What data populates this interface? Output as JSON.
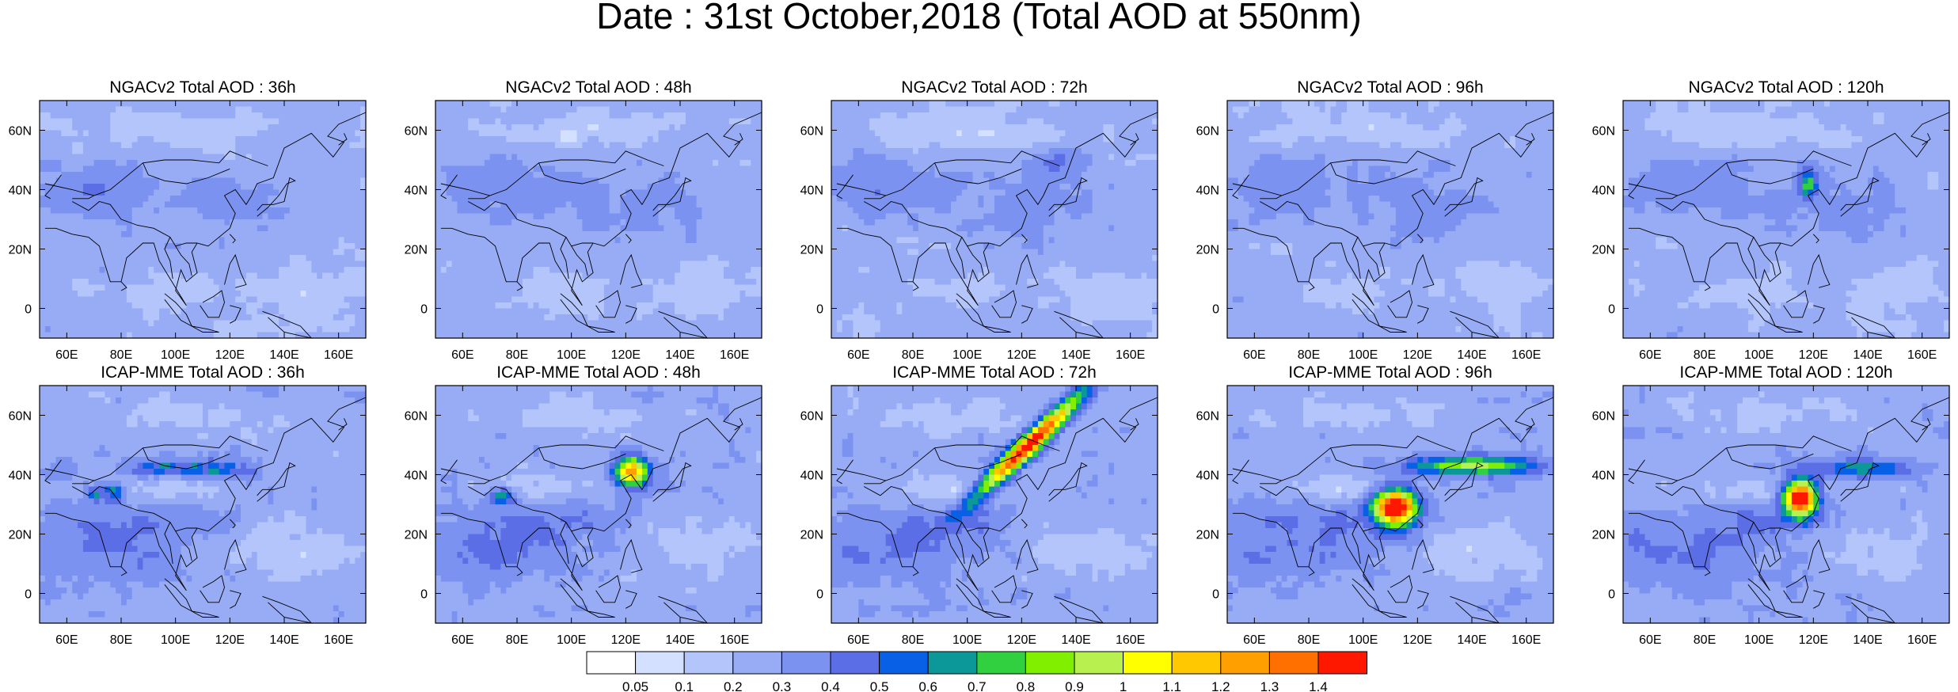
{
  "title": "Date : 31st October,2018 (Total AOD at 550nm)",
  "lon_ticks": [
    "60E",
    "80E",
    "100E",
    "120E",
    "140E",
    "160E"
  ],
  "lat_ticks": [
    "60N",
    "40N",
    "20N",
    "0"
  ],
  "panels": [
    {
      "title": "NGACv2 Total AOD : 36h",
      "model": "NGACv2",
      "lead": "36h",
      "row": 0,
      "col": 0
    },
    {
      "title": "NGACv2 Total AOD : 48h",
      "model": "NGACv2",
      "lead": "48h",
      "row": 0,
      "col": 1
    },
    {
      "title": "NGACv2 Total AOD : 72h",
      "model": "NGACv2",
      "lead": "72h",
      "row": 0,
      "col": 2
    },
    {
      "title": "NGACv2 Total AOD : 96h",
      "model": "NGACv2",
      "lead": "96h",
      "row": 0,
      "col": 3
    },
    {
      "title": "NGACv2 Total AOD : 120h",
      "model": "NGACv2",
      "lead": "120h",
      "row": 0,
      "col": 4
    },
    {
      "title": "ICAP-MME Total AOD : 36h",
      "model": "ICAP-MME",
      "lead": "36h",
      "row": 1,
      "col": 0
    },
    {
      "title": "ICAP-MME Total AOD : 48h",
      "model": "ICAP-MME",
      "lead": "48h",
      "row": 1,
      "col": 1
    },
    {
      "title": "ICAP-MME Total AOD : 72h",
      "model": "ICAP-MME",
      "lead": "72h",
      "row": 1,
      "col": 2
    },
    {
      "title": "ICAP-MME Total AOD : 96h",
      "model": "ICAP-MME",
      "lead": "96h",
      "row": 1,
      "col": 3
    },
    {
      "title": "ICAP-MME Total AOD : 120h",
      "model": "ICAP-MME",
      "lead": "120h",
      "row": 1,
      "col": 4
    }
  ],
  "colorbar": {
    "labels": [
      "0.05",
      "0.1",
      "0.2",
      "0.3",
      "0.4",
      "0.5",
      "0.6",
      "0.7",
      "0.8",
      "0.9",
      "1",
      "1.1",
      "1.2",
      "1.3",
      "1.4"
    ],
    "colors": [
      "#ffffff",
      "#d4e0ff",
      "#b4c5fb",
      "#98acf6",
      "#7c92f0",
      "#5b6ee6",
      "#0860e6",
      "#0c9898",
      "#30d040",
      "#80f000",
      "#b8f050",
      "#ffff00",
      "#ffc800",
      "#ffa000",
      "#ff7000",
      "#ff1800"
    ]
  }
}
